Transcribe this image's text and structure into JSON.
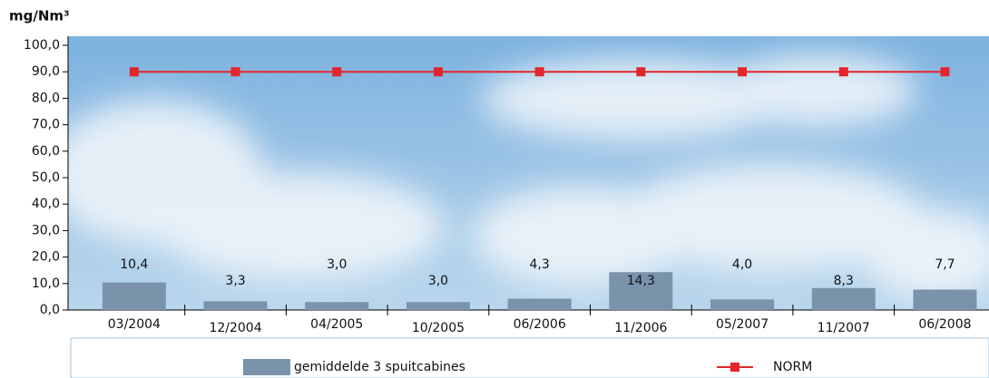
{
  "chart_data": {
    "type": "bar",
    "y_label": "mg/Nm³",
    "categories": [
      "03/2004",
      "12/2004",
      "04/2005",
      "10/2005",
      "06/2006",
      "11/2006",
      "05/2007",
      "11/2007",
      "06/2008"
    ],
    "series": [
      {
        "name": "gemiddelde 3 spuitcabines",
        "type": "bar",
        "color": "#7a93ab",
        "values": [
          10.4,
          3.3,
          3.0,
          3.0,
          4.3,
          14.3,
          4.0,
          8.3,
          7.7
        ],
        "value_labels": [
          "10,4",
          "3,3",
          "3,0",
          "3,0",
          "4,3",
          "14,3",
          "4,0",
          "8,3",
          "7,7"
        ]
      },
      {
        "name": "NORM",
        "type": "line",
        "color": "#e3262b",
        "values": [
          90,
          90,
          90,
          90,
          90,
          90,
          90,
          90,
          90
        ]
      }
    ],
    "ylim": [
      0,
      100
    ],
    "yticks": [
      {
        "value": 0,
        "label": "0,0"
      },
      {
        "value": 10,
        "label": "10,0"
      },
      {
        "value": 20,
        "label": "20,0"
      },
      {
        "value": 30,
        "label": "30,0"
      },
      {
        "value": 40,
        "label": "40,0"
      },
      {
        "value": 50,
        "label": "50,0"
      },
      {
        "value": 60,
        "label": "60,0"
      },
      {
        "value": 70,
        "label": "70,0"
      },
      {
        "value": 80,
        "label": "80,0"
      },
      {
        "value": 90,
        "label": "90,0"
      },
      {
        "value": 100,
        "label": "100,0"
      }
    ]
  }
}
